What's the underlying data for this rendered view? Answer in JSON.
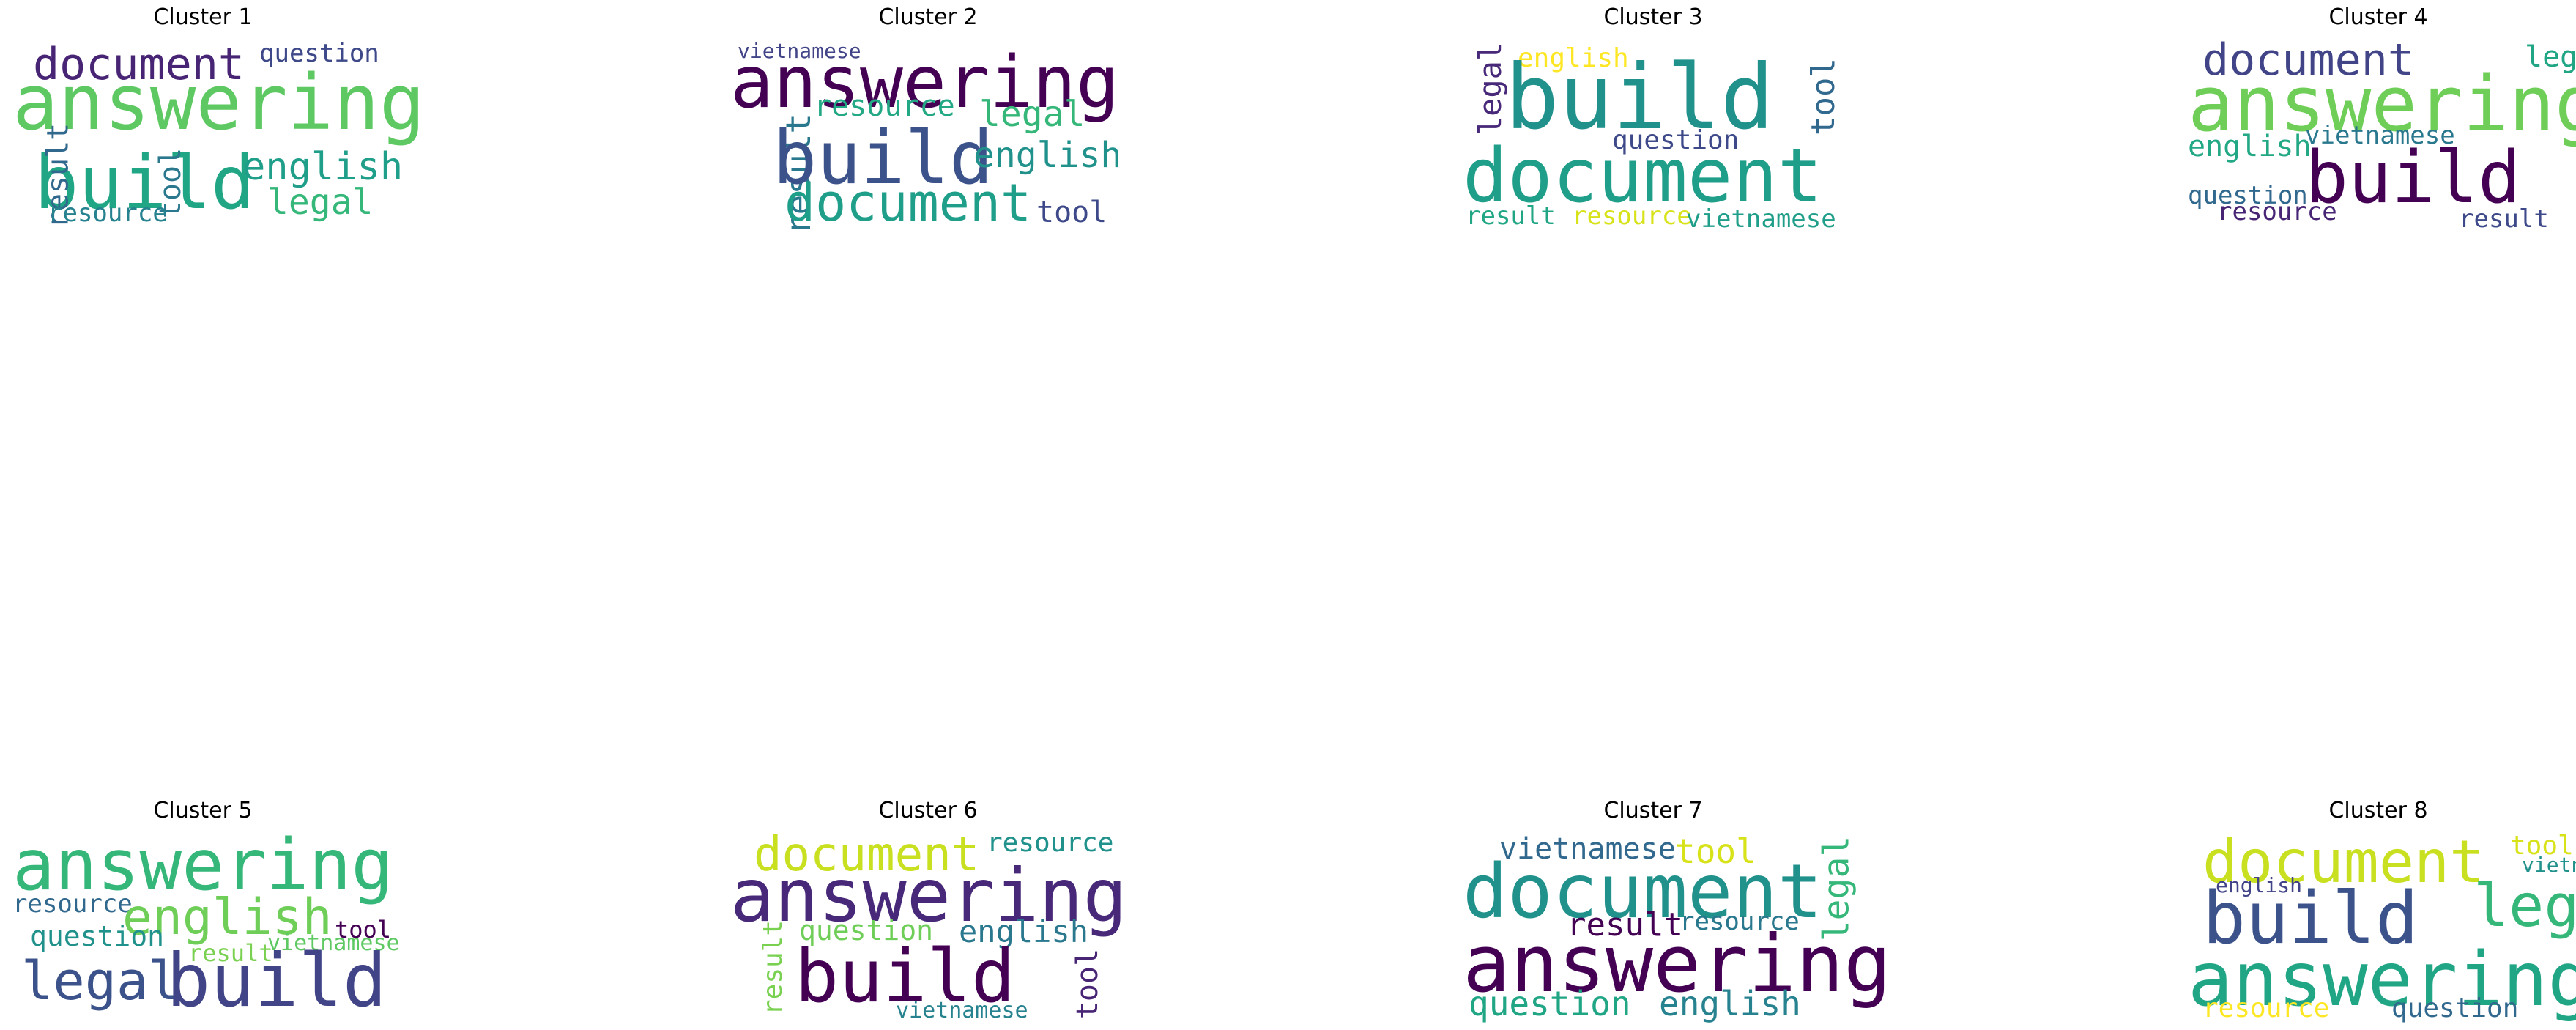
{
  "colors": {
    "dark_purple": "#440154",
    "indigo": "#3b528b",
    "navy": "#414487",
    "blue_teal": "#31688e",
    "teal": "#21918c",
    "teal_light": "#1f9e89",
    "green_teal": "#2a788e",
    "sea_green": "#35b779",
    "green": "#5ec962",
    "light_green": "#6ece58",
    "lime": "#b5de2b",
    "yellow_green": "#c8e020",
    "yellow": "#fde725"
  },
  "panels": [
    {
      "title": "Cluster 1",
      "words": [
        {
          "text": "document",
          "color": "#482475"
        },
        {
          "text": "question",
          "color": "#3e4989"
        },
        {
          "text": "answering",
          "color": "#5ec962"
        },
        {
          "text": "build",
          "color": "#21a685"
        },
        {
          "text": "tool",
          "color": "#2a788e"
        },
        {
          "text": "english",
          "color": "#1f9e89"
        },
        {
          "text": "legal",
          "color": "#35b779"
        },
        {
          "text": "result",
          "color": "#31688e"
        },
        {
          "text": "resource",
          "color": "#26828e"
        }
      ]
    },
    {
      "title": "Cluster 2",
      "words": [
        {
          "text": "vietnamese",
          "color": "#414487"
        },
        {
          "text": "answering",
          "color": "#440154"
        },
        {
          "text": "resource",
          "color": "#22a884"
        },
        {
          "text": "legal",
          "color": "#35b779"
        },
        {
          "text": "result",
          "color": "#2a788e"
        },
        {
          "text": "build",
          "color": "#3b528b"
        },
        {
          "text": "english",
          "color": "#21918c"
        },
        {
          "text": "document",
          "color": "#1f9e89"
        },
        {
          "text": "tool",
          "color": "#3e4989"
        }
      ]
    },
    {
      "title": "Cluster 3",
      "words": [
        {
          "text": "english",
          "color": "#fde725"
        },
        {
          "text": "legal",
          "color": "#482878"
        },
        {
          "text": "build",
          "color": "#21918c"
        },
        {
          "text": "tool",
          "color": "#31688e"
        },
        {
          "text": "question",
          "color": "#3e4989"
        },
        {
          "text": "document",
          "color": "#1f9e89"
        },
        {
          "text": "result",
          "color": "#21a685"
        },
        {
          "text": "resource",
          "color": "#d8e219"
        },
        {
          "text": "vietnamese",
          "color": "#1f9e89"
        }
      ]
    },
    {
      "title": "Cluster 4",
      "words": [
        {
          "text": "document",
          "color": "#414487"
        },
        {
          "text": "legal",
          "color": "#21a685"
        },
        {
          "text": "answering",
          "color": "#6ece58"
        },
        {
          "text": "vietnamese",
          "color": "#2a788e"
        },
        {
          "text": "english",
          "color": "#22a884"
        },
        {
          "text": "build",
          "color": "#440154"
        },
        {
          "text": "question",
          "color": "#31688e"
        },
        {
          "text": "resource",
          "color": "#482475"
        },
        {
          "text": "result",
          "color": "#3e4989"
        }
      ]
    },
    {
      "title": "Cluster 5",
      "words": [
        {
          "text": "answering",
          "color": "#35b779"
        },
        {
          "text": "resource",
          "color": "#31688e"
        },
        {
          "text": "english",
          "color": "#6ece58"
        },
        {
          "text": "tool",
          "color": "#440154"
        },
        {
          "text": "question",
          "color": "#21918c"
        },
        {
          "text": "result",
          "color": "#7ad151"
        },
        {
          "text": "vietnamese",
          "color": "#5ec962"
        },
        {
          "text": "legal",
          "color": "#3b528b"
        },
        {
          "text": "build",
          "color": "#414487"
        }
      ]
    },
    {
      "title": "Cluster 6",
      "words": [
        {
          "text": "document",
          "color": "#c8e020"
        },
        {
          "text": "resource",
          "color": "#21918c"
        },
        {
          "text": "answering",
          "color": "#482878"
        },
        {
          "text": "question",
          "color": "#6ece58"
        },
        {
          "text": "english",
          "color": "#2a788e"
        },
        {
          "text": "result",
          "color": "#7ad151"
        },
        {
          "text": "build",
          "color": "#440154"
        },
        {
          "text": "tool",
          "color": "#482475"
        },
        {
          "text": "vietnamese",
          "color": "#26828e"
        }
      ]
    },
    {
      "title": "Cluster 7",
      "words": [
        {
          "text": "vietnamese",
          "color": "#31688e"
        },
        {
          "text": "tool",
          "color": "#d8e219"
        },
        {
          "text": "document",
          "color": "#21918c"
        },
        {
          "text": "legal",
          "color": "#35b779"
        },
        {
          "text": "result",
          "color": "#440154"
        },
        {
          "text": "resource",
          "color": "#2a788e"
        },
        {
          "text": "answering",
          "color": "#440154"
        },
        {
          "text": "question",
          "color": "#21a685"
        },
        {
          "text": "english",
          "color": "#26828e"
        }
      ]
    },
    {
      "title": "Cluster 8",
      "words": [
        {
          "text": "document",
          "color": "#c8e020"
        },
        {
          "text": "tool",
          "color": "#d8e219"
        },
        {
          "text": "vietnamese",
          "color": "#21918c"
        },
        {
          "text": "english",
          "color": "#414487"
        },
        {
          "text": "legal",
          "color": "#35b779"
        },
        {
          "text": "build",
          "color": "#3b528b"
        },
        {
          "text": "answering",
          "color": "#21a685"
        },
        {
          "text": "resource",
          "color": "#fde725"
        },
        {
          "text": "question",
          "color": "#31688e"
        }
      ]
    }
  ]
}
